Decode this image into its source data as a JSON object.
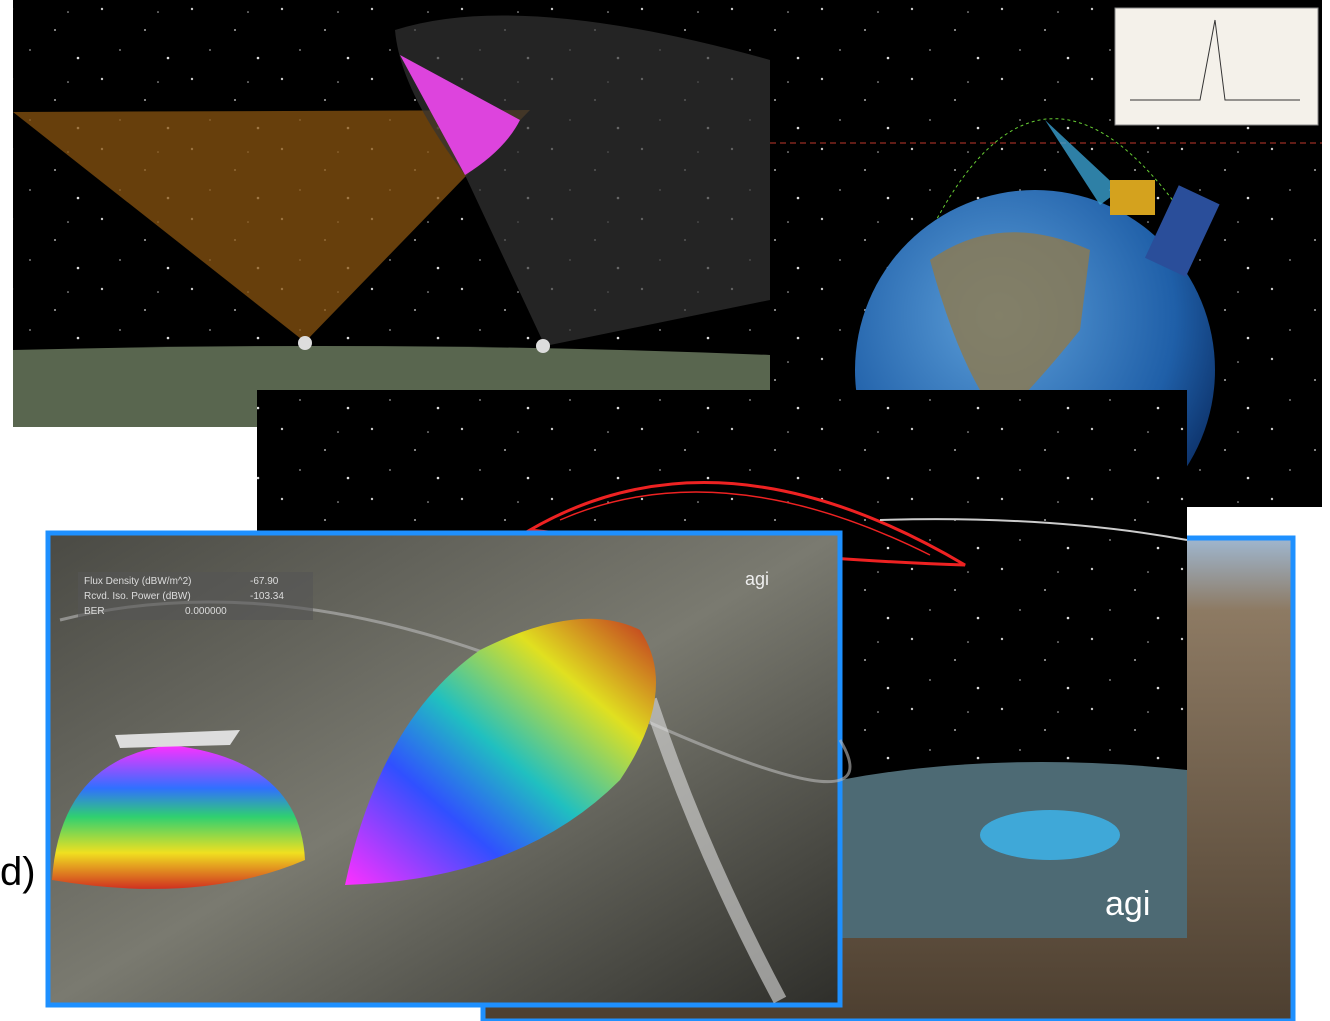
{
  "caption_fragment": "d)",
  "overlay": {
    "rows": [
      [
        "Flux Density (dBW/m^2)",
        "-67.90"
      ],
      [
        "Rcvd. Iso. Power (dBW)",
        "-103.34"
      ],
      [
        "BER",
        "0.000000"
      ]
    ]
  },
  "logos": [
    "agi",
    "agi"
  ]
}
